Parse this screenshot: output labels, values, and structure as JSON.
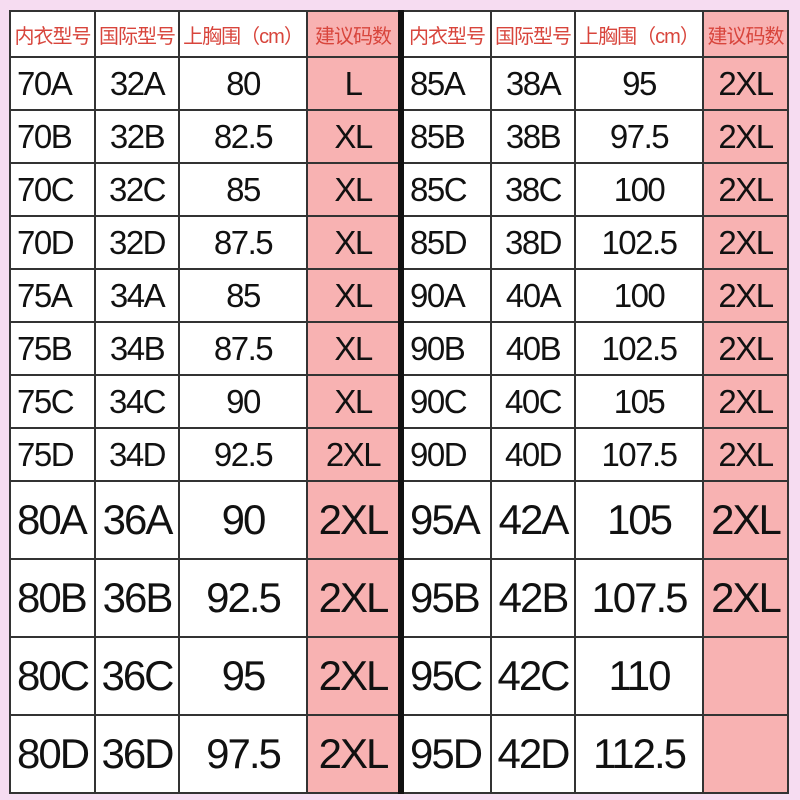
{
  "headers": [
    "内衣型号",
    "国际型号",
    "上胸围（cm）",
    "建议码数"
  ],
  "left": [
    [
      "70A",
      "32A",
      "80",
      "L"
    ],
    [
      "70B",
      "32B",
      "82.5",
      "XL"
    ],
    [
      "70C",
      "32C",
      "85",
      "XL"
    ],
    [
      "70D",
      "32D",
      "87.5",
      "XL"
    ],
    [
      "75A",
      "34A",
      "85",
      "XL"
    ],
    [
      "75B",
      "34B",
      "87.5",
      "XL"
    ],
    [
      "75C",
      "34C",
      "90",
      "XL"
    ],
    [
      "75D",
      "34D",
      "92.5",
      "2XL"
    ],
    [
      "80A",
      "36A",
      "90",
      "2XL"
    ],
    [
      "80B",
      "36B",
      "92.5",
      "2XL"
    ],
    [
      "80C",
      "36C",
      "95",
      "2XL"
    ],
    [
      "80D",
      "36D",
      "97.5",
      "2XL"
    ]
  ],
  "right": [
    [
      "85A",
      "38A",
      "95",
      "2XL"
    ],
    [
      "85B",
      "38B",
      "97.5",
      "2XL"
    ],
    [
      "85C",
      "38C",
      "100",
      "2XL"
    ],
    [
      "85D",
      "38D",
      "102.5",
      "2XL"
    ],
    [
      "90A",
      "40A",
      "100",
      "2XL"
    ],
    [
      "90B",
      "40B",
      "102.5",
      "2XL"
    ],
    [
      "90C",
      "40C",
      "105",
      "2XL"
    ],
    [
      "90D",
      "40D",
      "107.5",
      "2XL"
    ],
    [
      "95A",
      "42A",
      "105",
      "2XL"
    ],
    [
      "95B",
      "42B",
      "107.5",
      "2XL"
    ],
    [
      "95C",
      "42C",
      "110",
      ""
    ],
    [
      "95D",
      "42D",
      "112.5",
      ""
    ]
  ],
  "colors": {
    "header_text": "#d8453c",
    "size_cell": "#f8b2b2",
    "background": "#f6dcf1"
  }
}
